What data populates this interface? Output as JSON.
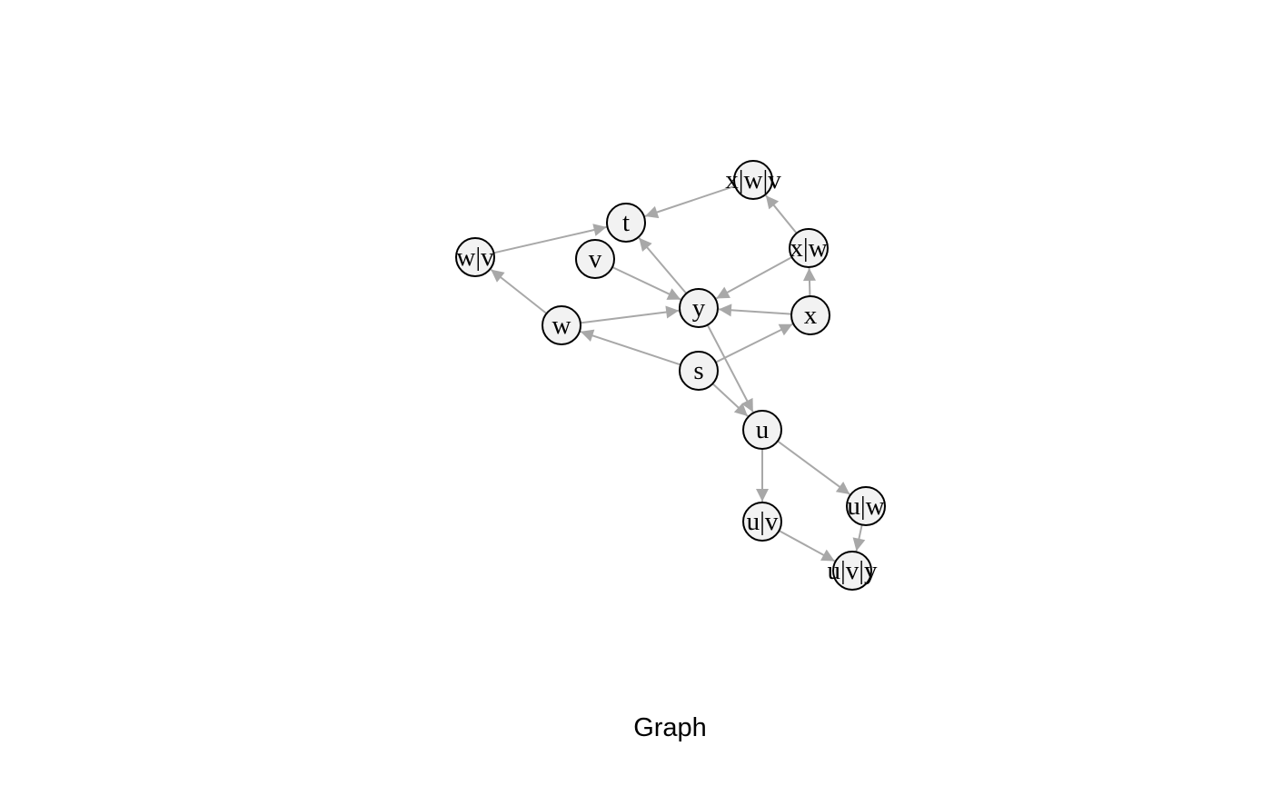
{
  "caption": "Graph",
  "colors": {
    "edge": "#a8a8a8",
    "node_fill": "#f2f2f2",
    "node_stroke": "#000000"
  },
  "nodes": [
    {
      "id": "x|w|v",
      "label": "x|w|v"
    },
    {
      "id": "t",
      "label": "t"
    },
    {
      "id": "w|v",
      "label": "w|v"
    },
    {
      "id": "v",
      "label": "v"
    },
    {
      "id": "x|w",
      "label": "x|w"
    },
    {
      "id": "y",
      "label": "y"
    },
    {
      "id": "x",
      "label": "x"
    },
    {
      "id": "w",
      "label": "w"
    },
    {
      "id": "s",
      "label": "s"
    },
    {
      "id": "u",
      "label": "u"
    },
    {
      "id": "u|w",
      "label": "u|w"
    },
    {
      "id": "u|v",
      "label": "u|v"
    },
    {
      "id": "u|v|y",
      "label": "u|v|y"
    }
  ],
  "edges": [
    {
      "from": "x|w|v",
      "to": "t"
    },
    {
      "from": "w|v",
      "to": "t"
    },
    {
      "from": "y",
      "to": "t"
    },
    {
      "from": "x|w",
      "to": "x|w|v"
    },
    {
      "from": "x|w",
      "to": "y"
    },
    {
      "from": "x",
      "to": "x|w"
    },
    {
      "from": "x",
      "to": "y"
    },
    {
      "from": "v",
      "to": "y"
    },
    {
      "from": "w",
      "to": "y"
    },
    {
      "from": "w",
      "to": "w|v"
    },
    {
      "from": "s",
      "to": "w"
    },
    {
      "from": "s",
      "to": "x"
    },
    {
      "from": "s",
      "to": "u"
    },
    {
      "from": "y",
      "to": "u"
    },
    {
      "from": "u",
      "to": "u|v"
    },
    {
      "from": "u",
      "to": "u|w"
    },
    {
      "from": "u|v",
      "to": "u|v|y"
    },
    {
      "from": "u|w",
      "to": "u|v|y"
    }
  ]
}
